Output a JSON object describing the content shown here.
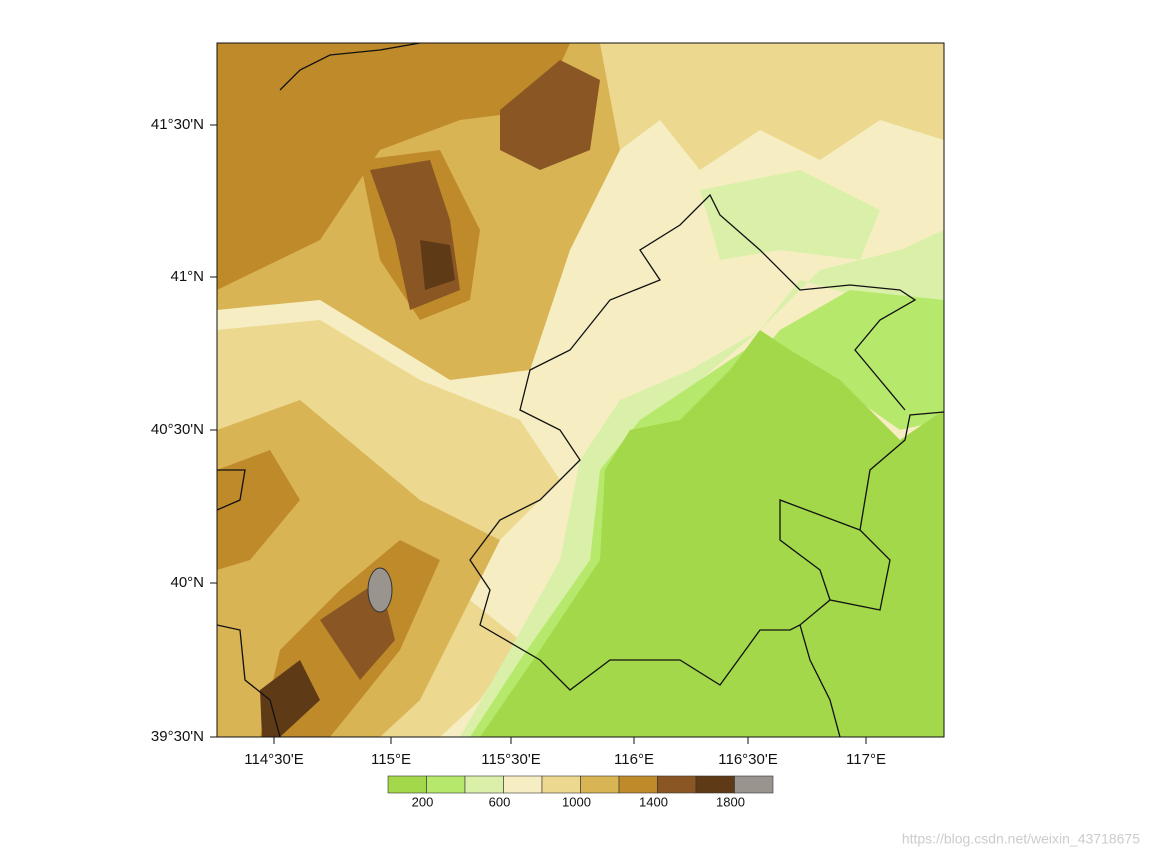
{
  "map": {
    "lat_ticks": [
      "41°30'N",
      "41°N",
      "40°30'N",
      "40°N",
      "39°30'N"
    ],
    "lon_ticks": [
      "114°30'E",
      "115°E",
      "115°30'E",
      "116°E",
      "116°30'E",
      "117°E"
    ],
    "colorbar": {
      "colors": [
        "#a3d84a",
        "#b6e86c",
        "#daf0a9",
        "#f6eec2",
        "#ecd88f",
        "#d9b455",
        "#bf8a2a",
        "#8a5724",
        "#5e3a17",
        "#9a948e"
      ],
      "labels": [
        "200",
        "600",
        "1000",
        "1400",
        "1800"
      ]
    },
    "watermark": "https://blog.csdn.net/weixin_43718675"
  }
}
